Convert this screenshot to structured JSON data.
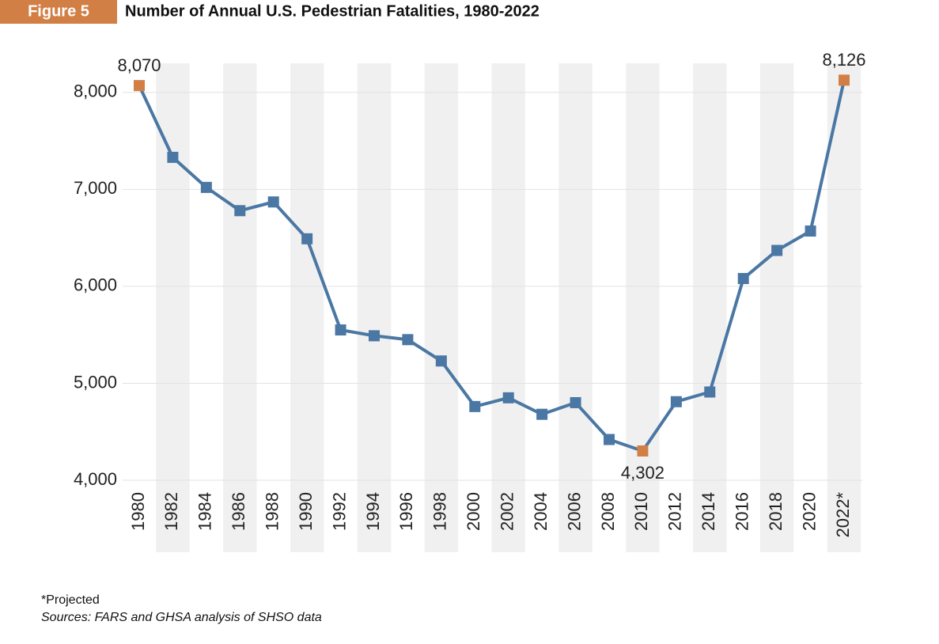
{
  "figure_label": "Figure 5",
  "chart_data": {
    "type": "line",
    "title": "Number of Annual U.S. Pedestrian Fatalities, 1980-2022",
    "categories": [
      "1980",
      "1982",
      "1984",
      "1986",
      "1988",
      "1990",
      "1992",
      "1994",
      "1996",
      "1998",
      "2000",
      "2002",
      "2004",
      "2006",
      "2008",
      "2010",
      "2012",
      "2014",
      "2016",
      "2018",
      "2020",
      "2022*"
    ],
    "values": [
      8070,
      7330,
      7020,
      6780,
      6870,
      6490,
      5550,
      5490,
      5450,
      5230,
      4760,
      4850,
      4680,
      4800,
      4420,
      4302,
      4810,
      4910,
      6080,
      6370,
      6570,
      8126
    ],
    "value_labels": [
      "8,070",
      null,
      null,
      null,
      null,
      null,
      null,
      null,
      null,
      null,
      null,
      null,
      null,
      null,
      null,
      "4,302",
      null,
      null,
      null,
      null,
      null,
      "8,126"
    ],
    "color": "#4a77a3",
    "highlight_color": "#d27f46",
    "ylim": [
      4000,
      8300
    ],
    "yticks": [
      {
        "value": 4000,
        "label": "4,000"
      },
      {
        "value": 5000,
        "label": "5,000"
      },
      {
        "value": 6000,
        "label": "6,000"
      },
      {
        "value": 7000,
        "label": "7,000"
      },
      {
        "value": 8000,
        "label": "8,000"
      }
    ],
    "grid": true
  },
  "notes": [
    "*Projected",
    "Sources: FARS and GHSA analysis of SHSO data"
  ]
}
